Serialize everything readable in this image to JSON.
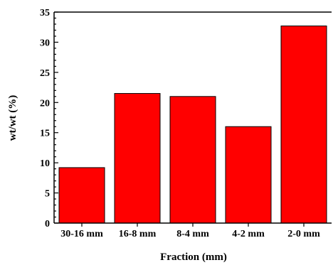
{
  "chart_data": {
    "type": "bar",
    "categories": [
      "30-16 mm",
      "16-8 mm",
      "8-4 mm",
      "4-2 mm",
      "2-0 mm"
    ],
    "values": [
      9.2,
      21.5,
      21.0,
      16.0,
      32.7
    ],
    "xlabel": "Fraction (mm)",
    "ylabel": "wt/wt (%)",
    "ylim": [
      0,
      35
    ],
    "yticks": [
      0,
      5,
      10,
      15,
      20,
      25,
      30,
      35
    ],
    "grid": false,
    "bar_color": "#ff0000",
    "bar_edge_color": "#000000"
  }
}
